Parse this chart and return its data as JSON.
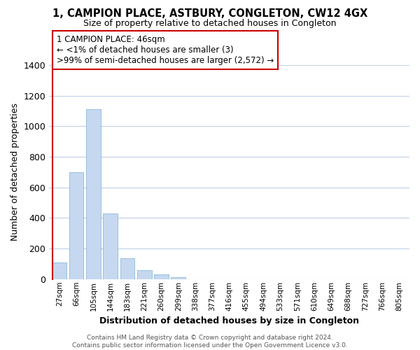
{
  "title": "1, CAMPION PLACE, ASTBURY, CONGLETON, CW12 4GX",
  "subtitle": "Size of property relative to detached houses in Congleton",
  "xlabel": "Distribution of detached houses by size in Congleton",
  "ylabel": "Number of detached properties",
  "bar_labels": [
    "27sqm",
    "66sqm",
    "105sqm",
    "144sqm",
    "183sqm",
    "221sqm",
    "260sqm",
    "299sqm",
    "338sqm",
    "377sqm",
    "416sqm",
    "455sqm",
    "494sqm",
    "533sqm",
    "571sqm",
    "610sqm",
    "649sqm",
    "688sqm",
    "727sqm",
    "766sqm",
    "805sqm"
  ],
  "bar_values": [
    110,
    700,
    1110,
    430,
    135,
    58,
    32,
    14,
    0,
    0,
    0,
    0,
    0,
    0,
    0,
    0,
    0,
    0,
    0,
    0,
    0
  ],
  "bar_color": "#c5d8f0",
  "bar_edge_color": "#7bafd4",
  "highlight_edge_color": "#cc0000",
  "ylim": [
    0,
    1400
  ],
  "yticks": [
    0,
    200,
    400,
    600,
    800,
    1000,
    1200,
    1400
  ],
  "annotation_title": "1 CAMPION PLACE: 46sqm",
  "annotation_line1": "← <1% of detached houses are smaller (3)",
  "annotation_line2": ">99% of semi-detached houses are larger (2,572) →",
  "annotation_box_color": "#ffffff",
  "annotation_box_edge_color": "#cc0000",
  "footer_line1": "Contains HM Land Registry data © Crown copyright and database right 2024.",
  "footer_line2": "Contains public sector information licensed under the Open Government Licence v3.0.",
  "bg_color": "#ffffff",
  "grid_color": "#c0d0e8"
}
